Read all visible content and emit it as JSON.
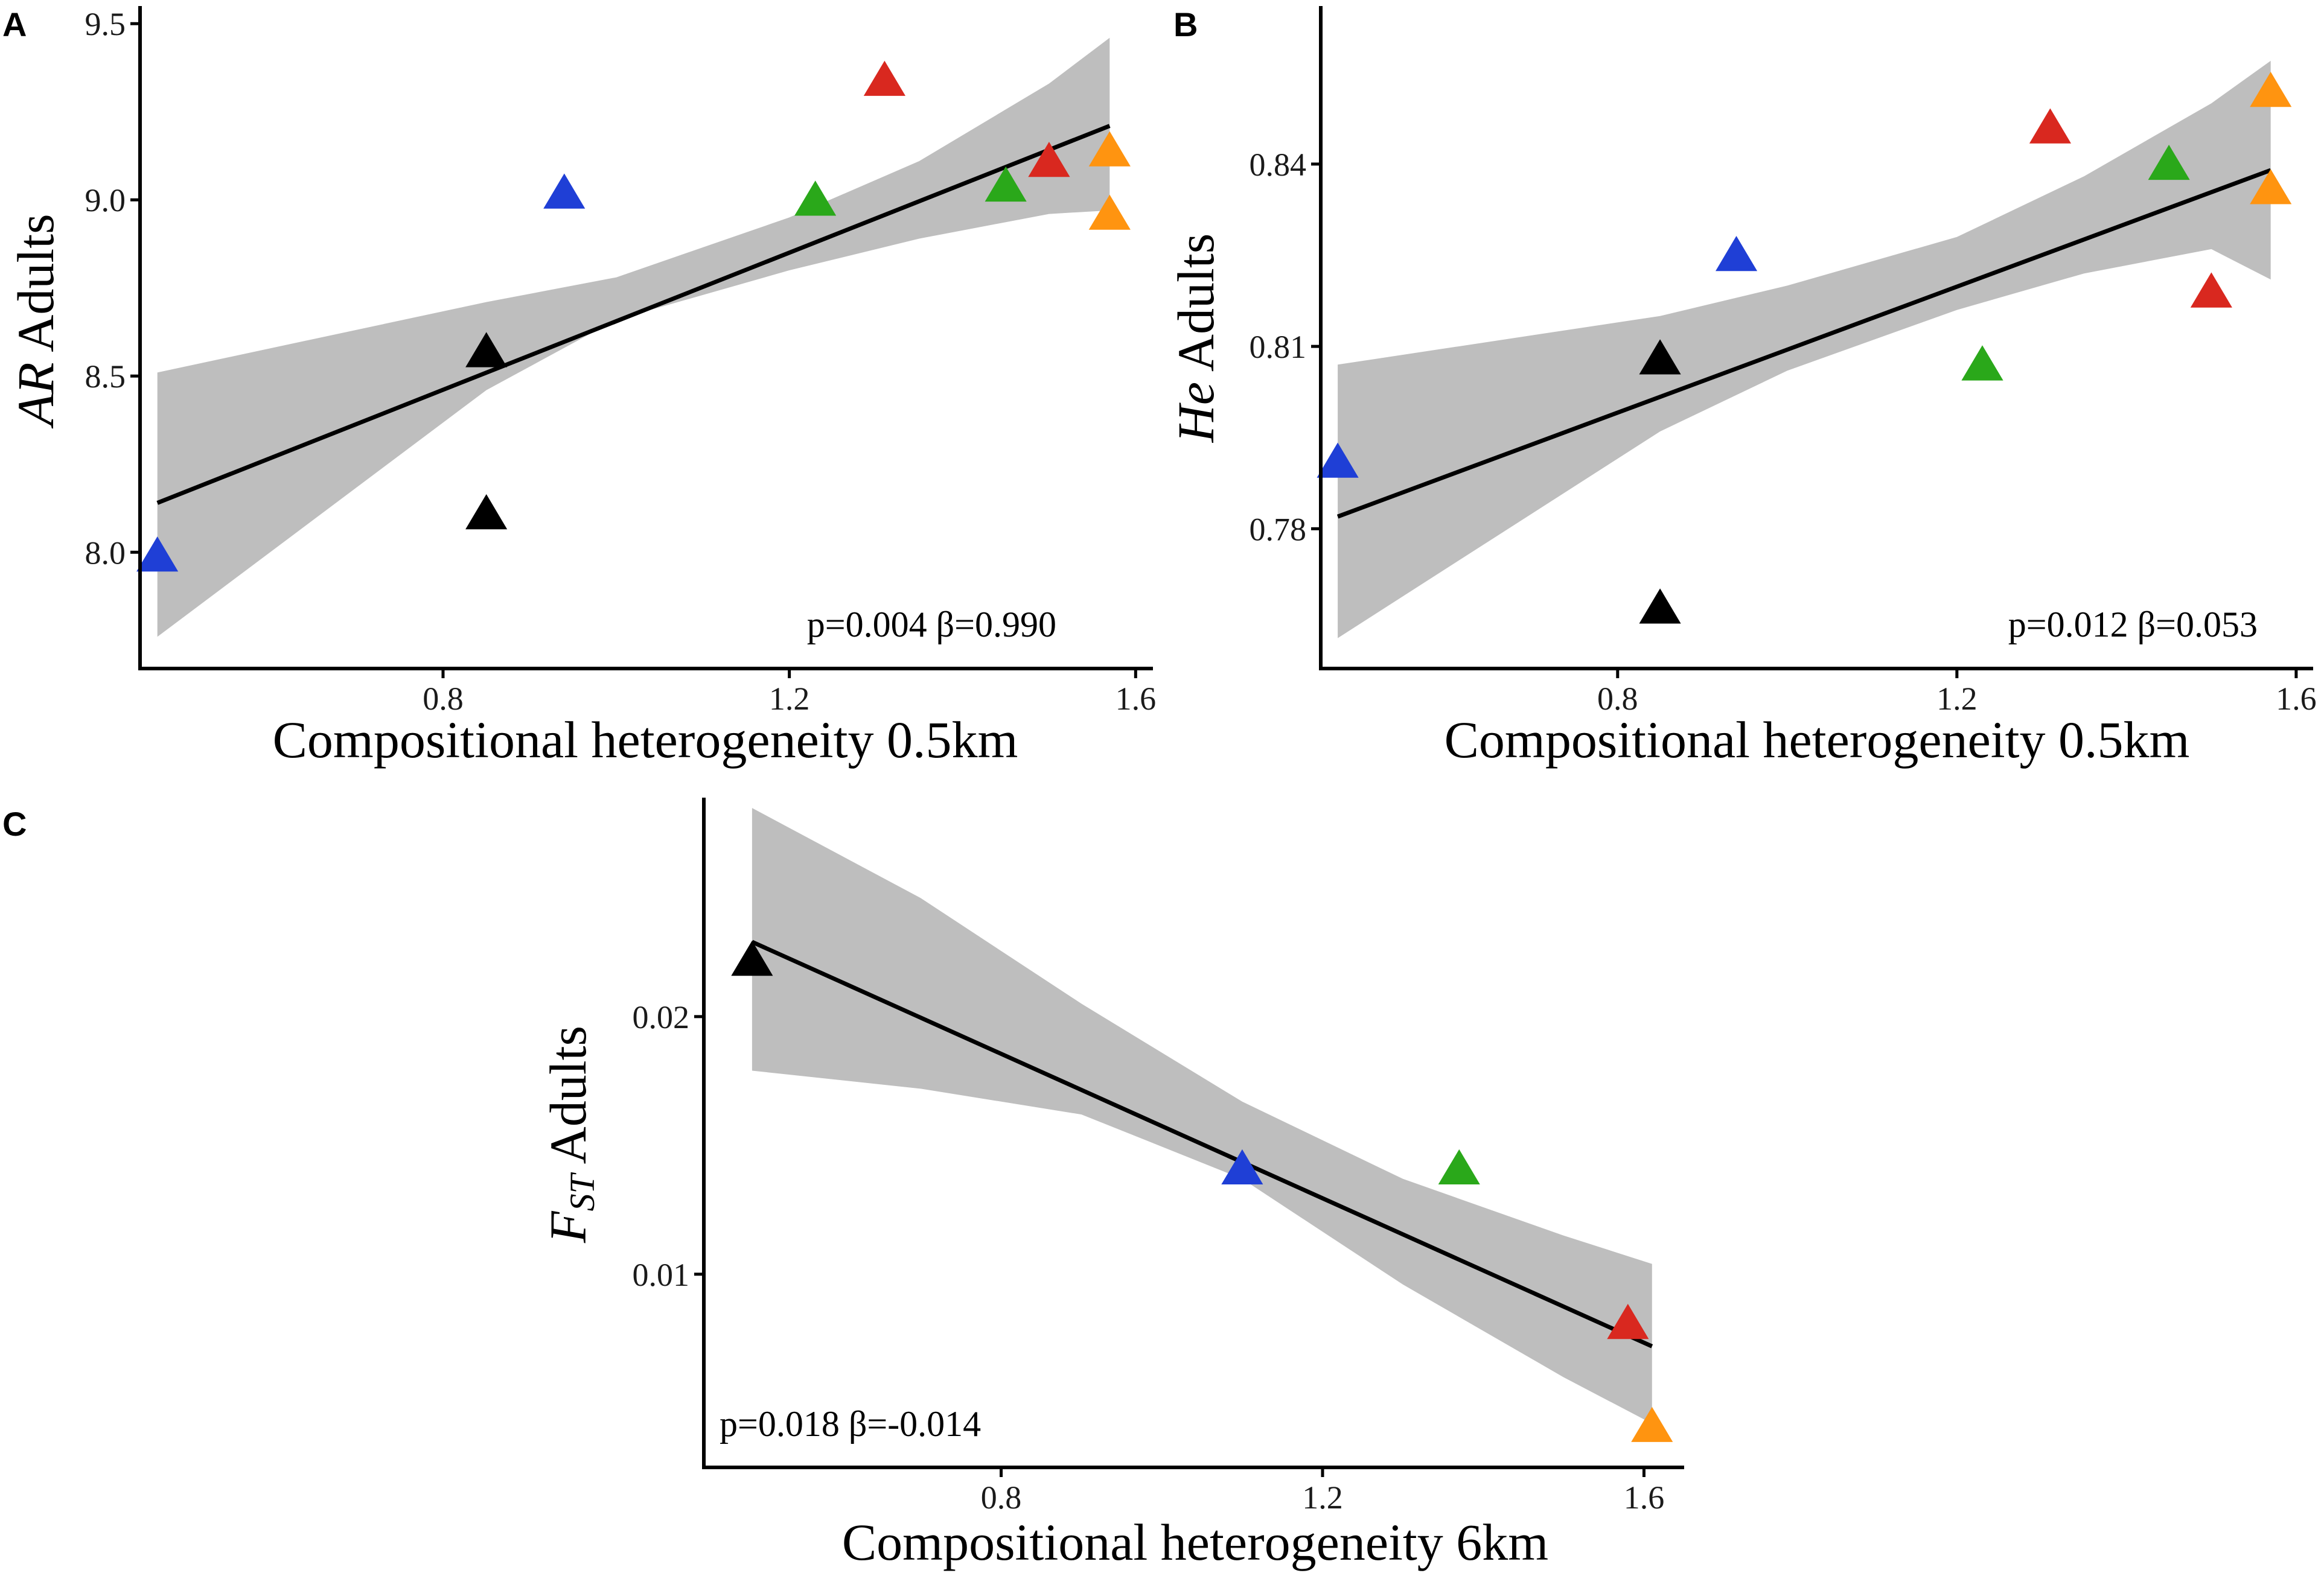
{
  "colors": {
    "blue": "#1f3fd6",
    "black": "#000000",
    "green": "#2aa81a",
    "red": "#d9281f",
    "orange": "#ff9410",
    "band": "#bebebe"
  },
  "chart_data": [
    {
      "panel": "A",
      "type": "scatter",
      "title": "",
      "xlabel": "Compositional heterogeneity 0.5km",
      "ylabel_italic": "AR",
      "ylabel_rest": " Adults",
      "x_ticks": [
        "0.8",
        "1.2",
        "1.6"
      ],
      "y_ticks": [
        "8.0",
        "8.5",
        "9.0",
        "9.5"
      ],
      "xlim": [
        0.45,
        1.62
      ],
      "ylim": [
        7.67,
        9.55
      ],
      "annotation": "p=0.004 β=0.990",
      "points": [
        {
          "x": 0.47,
          "y": 7.99,
          "color": "blue"
        },
        {
          "x": 0.85,
          "y": 8.57,
          "color": "black"
        },
        {
          "x": 0.85,
          "y": 8.11,
          "color": "black"
        },
        {
          "x": 0.94,
          "y": 9.02,
          "color": "blue"
        },
        {
          "x": 1.23,
          "y": 9.0,
          "color": "green"
        },
        {
          "x": 1.31,
          "y": 9.34,
          "color": "red"
        },
        {
          "x": 1.45,
          "y": 9.04,
          "color": "green"
        },
        {
          "x": 1.5,
          "y": 9.11,
          "color": "red"
        },
        {
          "x": 1.57,
          "y": 9.14,
          "color": "orange"
        },
        {
          "x": 1.57,
          "y": 8.96,
          "color": "orange"
        }
      ],
      "fit": {
        "x": [
          0.47,
          1.57
        ],
        "y": [
          8.14,
          9.21
        ]
      },
      "ci_upper": [
        [
          0.47,
          8.51
        ],
        [
          0.85,
          8.71
        ],
        [
          1.0,
          8.78
        ],
        [
          1.2,
          8.95
        ],
        [
          1.35,
          9.11
        ],
        [
          1.5,
          9.33
        ],
        [
          1.57,
          9.46
        ]
      ],
      "ci_lower": [
        [
          0.47,
          7.76
        ],
        [
          0.85,
          8.46
        ],
        [
          1.0,
          8.66
        ],
        [
          1.2,
          8.8
        ],
        [
          1.35,
          8.89
        ],
        [
          1.5,
          8.96
        ],
        [
          1.57,
          8.97
        ]
      ]
    },
    {
      "panel": "B",
      "type": "scatter",
      "title": "",
      "xlabel": "Compositional heterogeneity 0.5km",
      "ylabel_italic": "He",
      "ylabel_rest": " Adults",
      "x_ticks": [
        "0.8",
        "1.2",
        "1.6"
      ],
      "y_ticks": [
        "0.78",
        "0.81",
        "0.84"
      ],
      "xlim": [
        0.45,
        1.62
      ],
      "ylim": [
        0.757,
        0.866
      ],
      "annotation": "p=0.012 β=0.053",
      "points": [
        {
          "x": 0.47,
          "y": 0.791,
          "color": "blue"
        },
        {
          "x": 0.85,
          "y": 0.808,
          "color": "black"
        },
        {
          "x": 0.85,
          "y": 0.767,
          "color": "black"
        },
        {
          "x": 0.94,
          "y": 0.825,
          "color": "blue"
        },
        {
          "x": 1.23,
          "y": 0.807,
          "color": "green"
        },
        {
          "x": 1.31,
          "y": 0.846,
          "color": "red"
        },
        {
          "x": 1.45,
          "y": 0.84,
          "color": "green"
        },
        {
          "x": 1.5,
          "y": 0.819,
          "color": "red"
        },
        {
          "x": 1.57,
          "y": 0.852,
          "color": "orange"
        },
        {
          "x": 1.57,
          "y": 0.836,
          "color": "orange"
        }
      ],
      "fit": {
        "x": [
          0.47,
          1.57
        ],
        "y": [
          0.782,
          0.839
        ]
      },
      "ci_upper": [
        [
          0.47,
          0.807
        ],
        [
          0.85,
          0.815
        ],
        [
          1.0,
          0.82
        ],
        [
          1.2,
          0.828
        ],
        [
          1.35,
          0.838
        ],
        [
          1.5,
          0.85
        ],
        [
          1.57,
          0.857
        ]
      ],
      "ci_lower": [
        [
          0.47,
          0.762
        ],
        [
          0.85,
          0.796
        ],
        [
          1.0,
          0.806
        ],
        [
          1.2,
          0.816
        ],
        [
          1.35,
          0.822
        ],
        [
          1.5,
          0.826
        ],
        [
          1.57,
          0.821
        ]
      ]
    },
    {
      "panel": "C",
      "type": "scatter",
      "title": "",
      "xlabel": "Compositional heterogeneity 6km",
      "ylabel_italic": "F",
      "ylabel_sub": "ST",
      "ylabel_rest": " Adults",
      "x_ticks": [
        "0.8",
        "1.2",
        "1.6"
      ],
      "y_ticks": [
        "0.01",
        "0.02"
      ],
      "xlim": [
        0.43,
        1.65
      ],
      "ylim": [
        0.0025,
        0.0285
      ],
      "annotation": "p=0.018 β=-0.014",
      "points": [
        {
          "x": 0.49,
          "y": 0.0222,
          "color": "black"
        },
        {
          "x": 1.1,
          "y": 0.0141,
          "color": "blue"
        },
        {
          "x": 1.37,
          "y": 0.0141,
          "color": "green"
        },
        {
          "x": 1.58,
          "y": 0.0081,
          "color": "red"
        },
        {
          "x": 1.61,
          "y": 0.0041,
          "color": "orange"
        }
      ],
      "fit": {
        "x": [
          0.49,
          1.61
        ],
        "y": [
          0.0229,
          0.0072
        ]
      },
      "ci_upper": [
        [
          0.49,
          0.0281
        ],
        [
          0.7,
          0.0246
        ],
        [
          0.9,
          0.0205
        ],
        [
          1.1,
          0.0167
        ],
        [
          1.3,
          0.0137
        ],
        [
          1.5,
          0.0115
        ],
        [
          1.61,
          0.0104
        ]
      ],
      "ci_lower": [
        [
          0.49,
          0.0179
        ],
        [
          0.7,
          0.0172
        ],
        [
          0.9,
          0.0162
        ],
        [
          1.1,
          0.0137
        ],
        [
          1.3,
          0.0096
        ],
        [
          1.5,
          0.006
        ],
        [
          1.61,
          0.0042
        ]
      ]
    }
  ]
}
